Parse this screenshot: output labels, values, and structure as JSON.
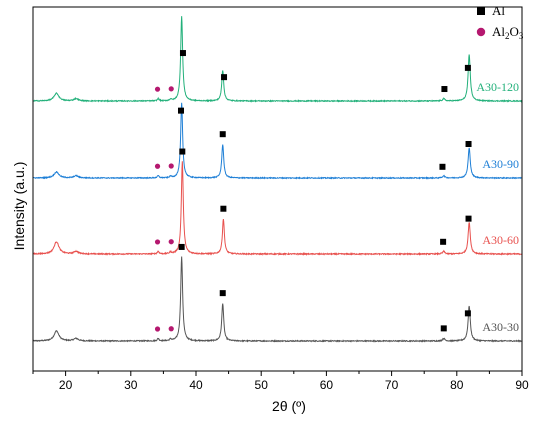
{
  "chart_data": {
    "type": "line",
    "xlabel": "2θ (º)",
    "ylabel": "Intensity (a.u.)",
    "xlim": [
      15,
      90
    ],
    "x_ticks": [
      "20",
      "30",
      "40",
      "50",
      "60",
      "70",
      "80",
      "90"
    ],
    "grid": false,
    "legend_position": "top-right",
    "legend": [
      {
        "marker": "square",
        "label": "Al",
        "color": "#000000"
      },
      {
        "marker": "circle",
        "label_main": "Al",
        "label_sub": "2",
        "label_mid": "O",
        "label_sub2": "3",
        "color": "#b5186f"
      }
    ],
    "series": [
      {
        "name": "A30-30",
        "color": "#555555",
        "baseline": 0.0,
        "peaks": [
          {
            "x": 18.6,
            "y": 0.12,
            "w": 0.45
          },
          {
            "x": 21.6,
            "y": 0.03,
            "w": 0.4
          },
          {
            "x": 34.2,
            "y": 0.03,
            "w": 0.15
          },
          {
            "x": 36.1,
            "y": 0.02,
            "w": 0.15
          },
          {
            "x": 37.8,
            "y": 1.0,
            "w": 0.18
          },
          {
            "x": 44.1,
            "y": 0.45,
            "w": 0.18
          },
          {
            "x": 78.0,
            "y": 0.03,
            "w": 0.2
          },
          {
            "x": 81.9,
            "y": 0.42,
            "w": 0.2
          }
        ],
        "markers_al": [
          37.8,
          44.1,
          78.0,
          81.7
        ],
        "markers_al2o3": [
          34.1,
          36.2
        ]
      },
      {
        "name": "A30-60",
        "color": "#e8514e",
        "baseline": 0.0,
        "peaks": [
          {
            "x": 18.6,
            "y": 0.14,
            "w": 0.45
          },
          {
            "x": 21.6,
            "y": 0.03,
            "w": 0.4
          },
          {
            "x": 34.2,
            "y": 0.03,
            "w": 0.15
          },
          {
            "x": 36.1,
            "y": 0.02,
            "w": 0.15
          },
          {
            "x": 37.9,
            "y": 1.05,
            "w": 0.18
          },
          {
            "x": 44.2,
            "y": 0.4,
            "w": 0.18
          },
          {
            "x": 78.0,
            "y": 0.03,
            "w": 0.2
          },
          {
            "x": 81.9,
            "y": 0.36,
            "w": 0.2
          }
        ],
        "markers_al": [
          37.9,
          44.2,
          77.9,
          81.8
        ],
        "markers_al2o3": [
          34.1,
          36.2
        ]
      },
      {
        "name": "A30-90",
        "color": "#1e7fd6",
        "baseline": 0.0,
        "peaks": [
          {
            "x": 18.6,
            "y": 0.08,
            "w": 0.45
          },
          {
            "x": 21.6,
            "y": 0.03,
            "w": 0.4
          },
          {
            "x": 34.2,
            "y": 0.03,
            "w": 0.15
          },
          {
            "x": 36.1,
            "y": 0.02,
            "w": 0.15
          },
          {
            "x": 37.8,
            "y": 1.0,
            "w": 0.18
          },
          {
            "x": 44.1,
            "y": 0.45,
            "w": 0.18
          },
          {
            "x": 78.0,
            "y": 0.03,
            "w": 0.2
          },
          {
            "x": 81.9,
            "y": 0.4,
            "w": 0.2
          }
        ],
        "markers_al": [
          37.7,
          44.1,
          77.8,
          81.8
        ],
        "markers_al2o3": [
          34.1,
          36.2
        ]
      },
      {
        "name": "A30-120",
        "color": "#22b07a",
        "baseline": 0.0,
        "peaks": [
          {
            "x": 18.6,
            "y": 0.1,
            "w": 0.45
          },
          {
            "x": 21.6,
            "y": 0.03,
            "w": 0.4
          },
          {
            "x": 34.2,
            "y": 0.03,
            "w": 0.15
          },
          {
            "x": 36.1,
            "y": 0.02,
            "w": 0.15
          },
          {
            "x": 37.8,
            "y": 1.1,
            "w": 0.18
          },
          {
            "x": 44.1,
            "y": 0.4,
            "w": 0.18
          },
          {
            "x": 78.0,
            "y": 0.03,
            "w": 0.2
          },
          {
            "x": 81.9,
            "y": 0.6,
            "w": 0.2
          }
        ],
        "markers_al": [
          38.0,
          44.3,
          78.1,
          81.7
        ],
        "markers_al2o3": [
          34.1,
          36.2
        ]
      }
    ]
  }
}
